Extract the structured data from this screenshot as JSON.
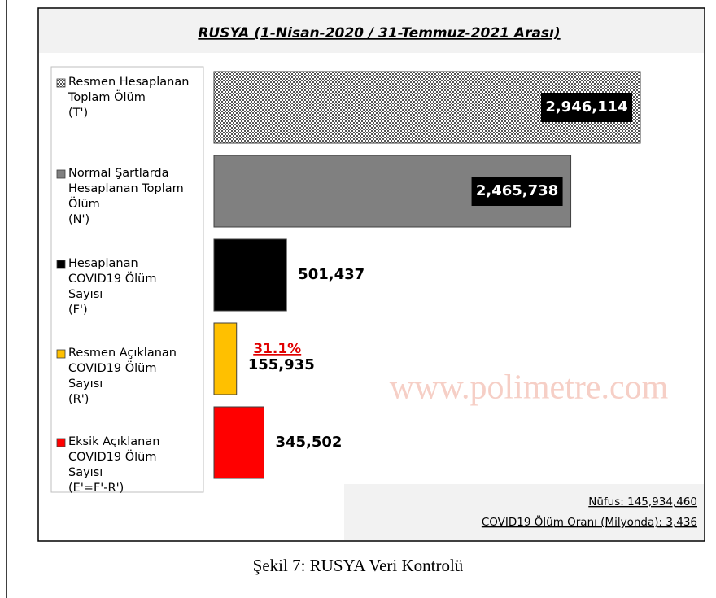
{
  "chart_data": {
    "type": "bar",
    "orientation": "horizontal",
    "title": "RUSYA (1-Nisan-2020 / 31-Temmuz-2021 Arası)",
    "categories": [
      "Resmen Hesaplanan\nToplam Ölüm\n(T')",
      "Normal Şartlarda\nHesaplanan Toplam\nÖlüm\n(N')",
      "Hesaplanan\nCOVID19 Ölüm\nSayısı\n(F')",
      "Resmen Açıklanan\nCOVID19 Ölüm\nSayısı\n(R')",
      "Eksik Açıklanan\nCOVID19 Ölüm\nSayısı\n(E'=F'-R')"
    ],
    "values": [
      2946114,
      2465738,
      501437,
      155935,
      345502
    ],
    "value_labels": [
      "2,946,114",
      "2,465,738",
      "501,437",
      "155,935",
      "345,502"
    ],
    "colors": [
      "#a0a0a0",
      "#808080",
      "#000000",
      "#ffc000",
      "#ff0000"
    ],
    "patterns": [
      "checker",
      null,
      null,
      null,
      null
    ],
    "annotations": [
      {
        "text": "31.1%",
        "category": 3,
        "color": "#e00000"
      }
    ],
    "notes": [
      "Nüfus: 145,934,460",
      "COVID19 Ölüm Oranı (Milyonda): 3,436"
    ],
    "watermark": "www.polimetre.com",
    "caption": "Şekil 7: RUSYA Veri Kontrolü"
  }
}
